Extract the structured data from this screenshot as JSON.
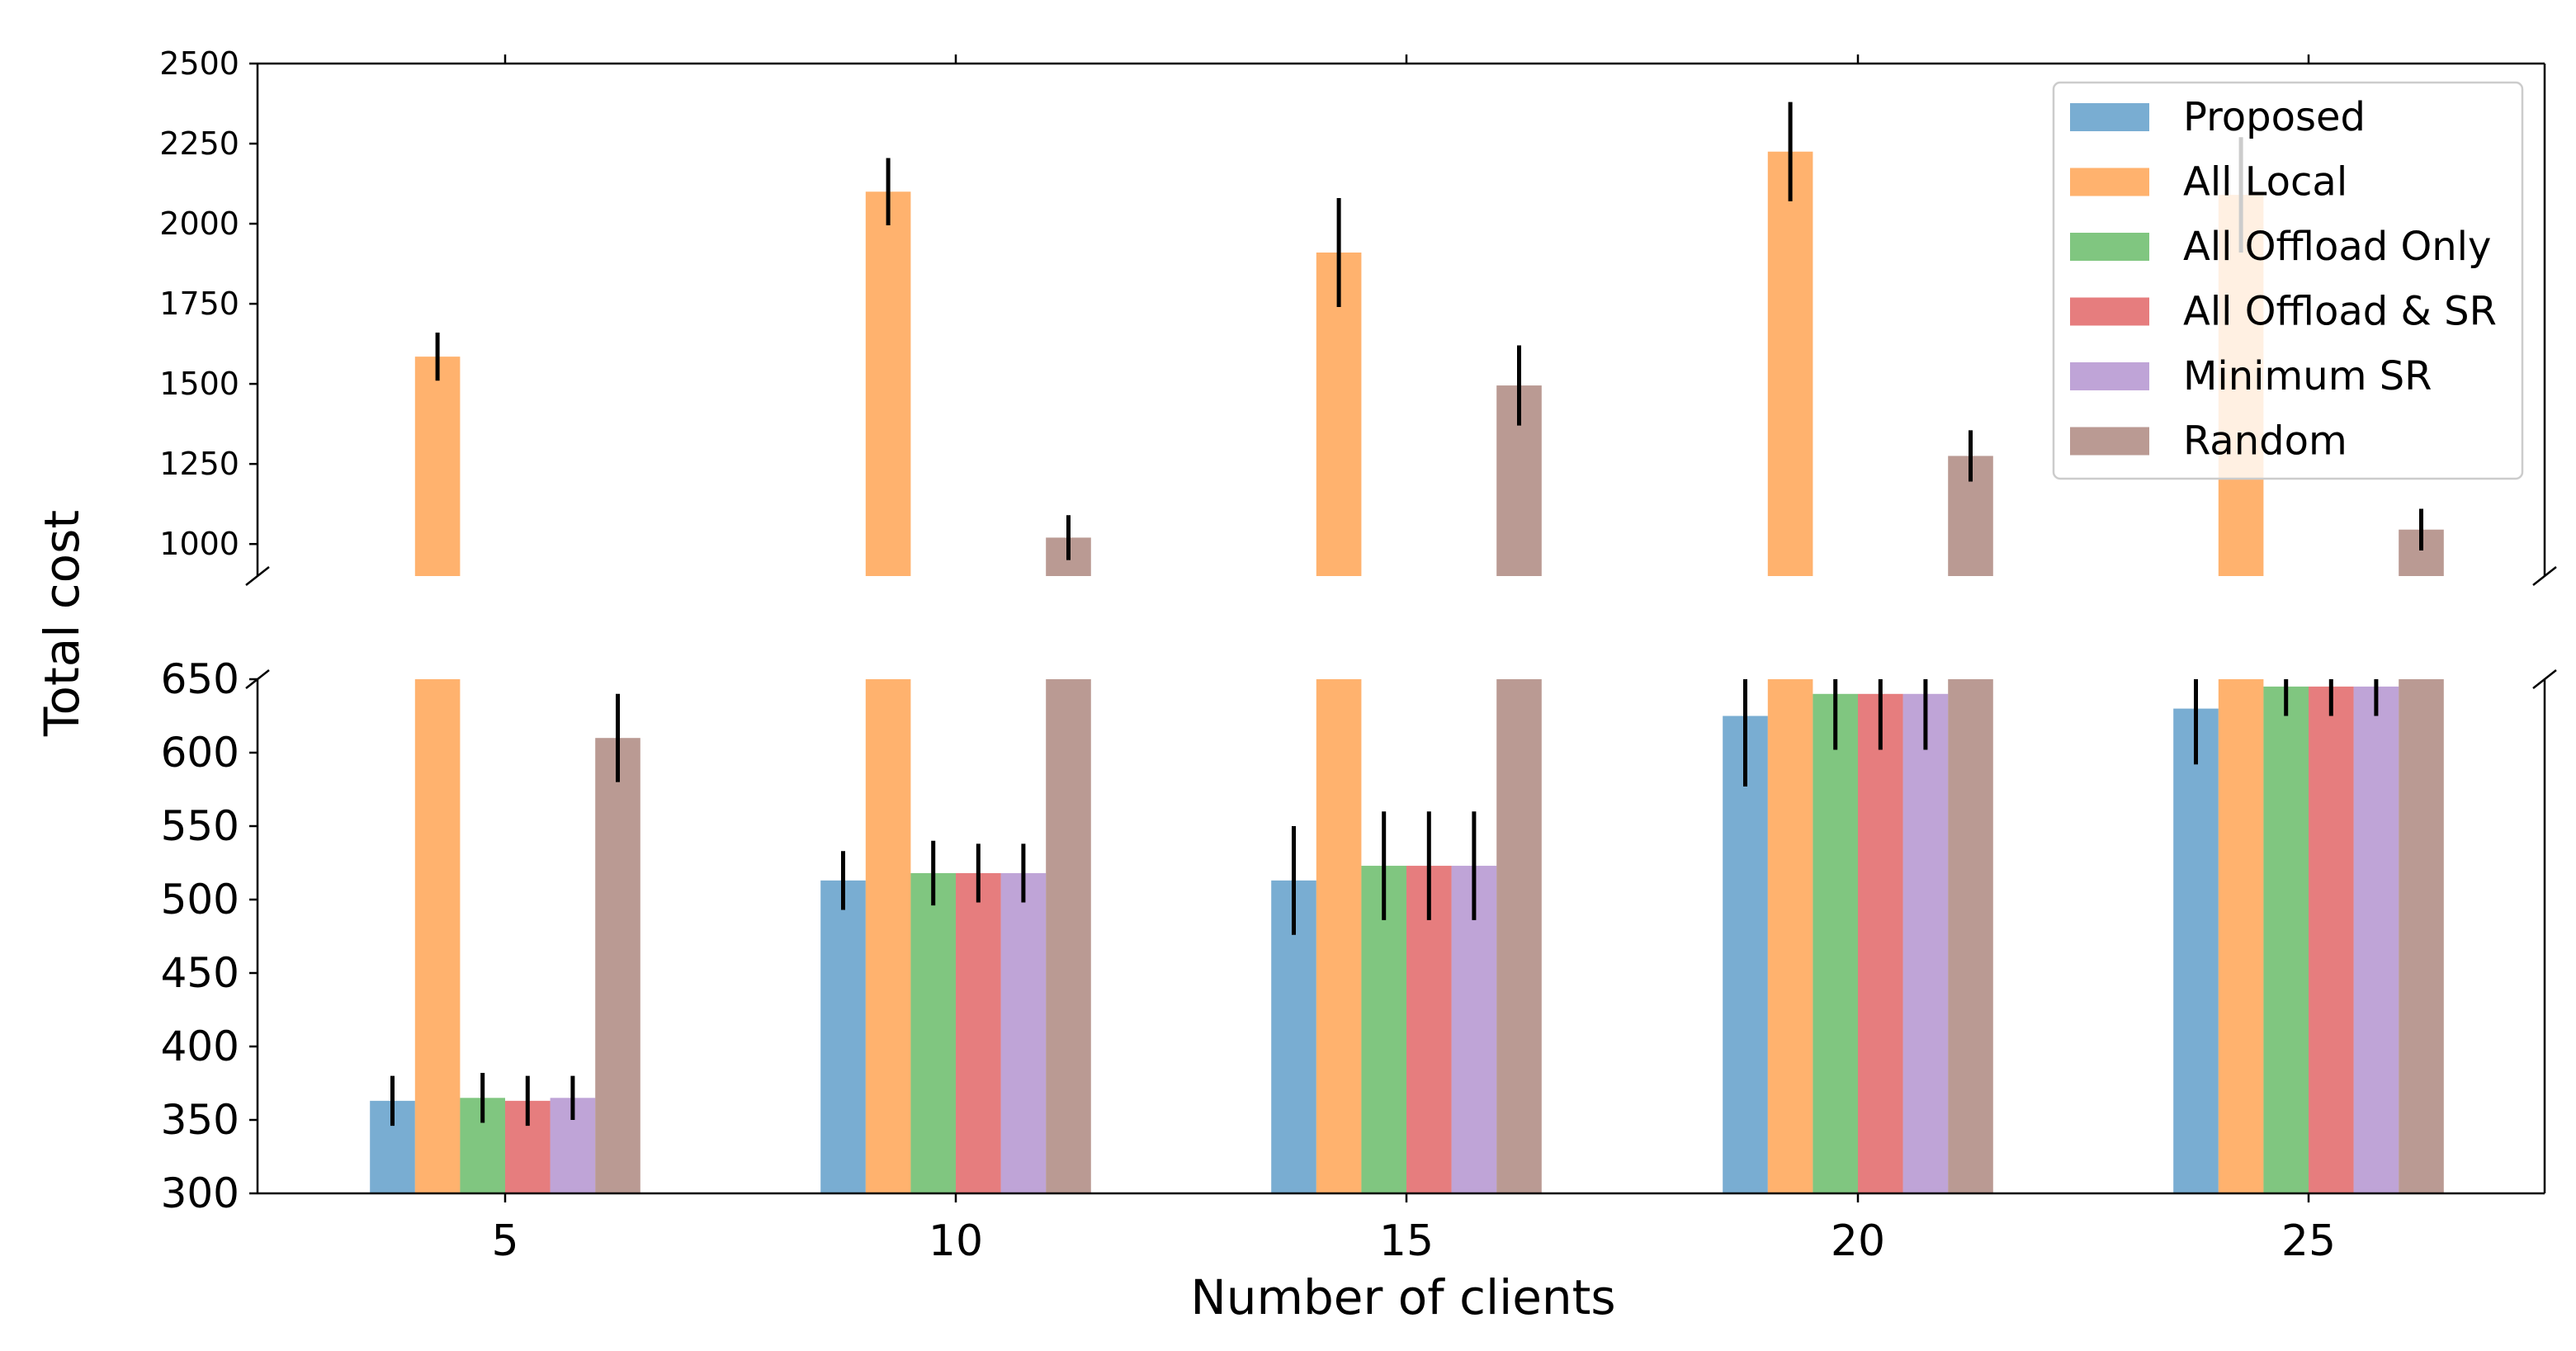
{
  "chart_data": {
    "type": "bar",
    "subtype": "grouped-bar-broken-y-axis",
    "xlabel": "Number of clients",
    "ylabel": "Total cost",
    "categories": [
      "5",
      "10",
      "15",
      "20",
      "25"
    ],
    "axes": {
      "top": {
        "ylim": [
          900,
          2500
        ],
        "ticks": [
          1000,
          1250,
          1500,
          1750,
          2000,
          2250,
          2500
        ]
      },
      "bottom": {
        "ylim": [
          300,
          650
        ],
        "ticks": [
          300,
          350,
          400,
          450,
          500,
          550,
          600,
          650
        ]
      }
    },
    "series": [
      {
        "name": "Proposed",
        "color": "#1f77b4",
        "values": [
          363,
          513,
          513,
          625,
          630
        ],
        "errors": [
          17,
          20,
          37,
          48,
          38
        ]
      },
      {
        "name": "All Local",
        "color": "#ff7f0e",
        "values": [
          1585,
          2100,
          1910,
          2225,
          2090
        ],
        "errors": [
          75,
          105,
          170,
          155,
          180
        ]
      },
      {
        "name": "All Offload Only",
        "color": "#2ca02c",
        "values": [
          365,
          518,
          523,
          640,
          645
        ],
        "errors": [
          17,
          22,
          37,
          38,
          20
        ]
      },
      {
        "name": "All Offload & SR",
        "color": "#d62728",
        "values": [
          363,
          518,
          523,
          640,
          645
        ],
        "errors": [
          17,
          20,
          37,
          38,
          20
        ]
      },
      {
        "name": "Minimum SR",
        "color": "#9467bd",
        "values": [
          365,
          518,
          523,
          640,
          645
        ],
        "errors": [
          15,
          20,
          37,
          38,
          20
        ]
      },
      {
        "name": "Random",
        "color": "#8c564b",
        "values": [
          610,
          1020,
          1495,
          1275,
          1045
        ],
        "errors": [
          30,
          70,
          125,
          80,
          65
        ]
      }
    ],
    "legend_position": "top-right",
    "bar_alpha": 0.6
  }
}
